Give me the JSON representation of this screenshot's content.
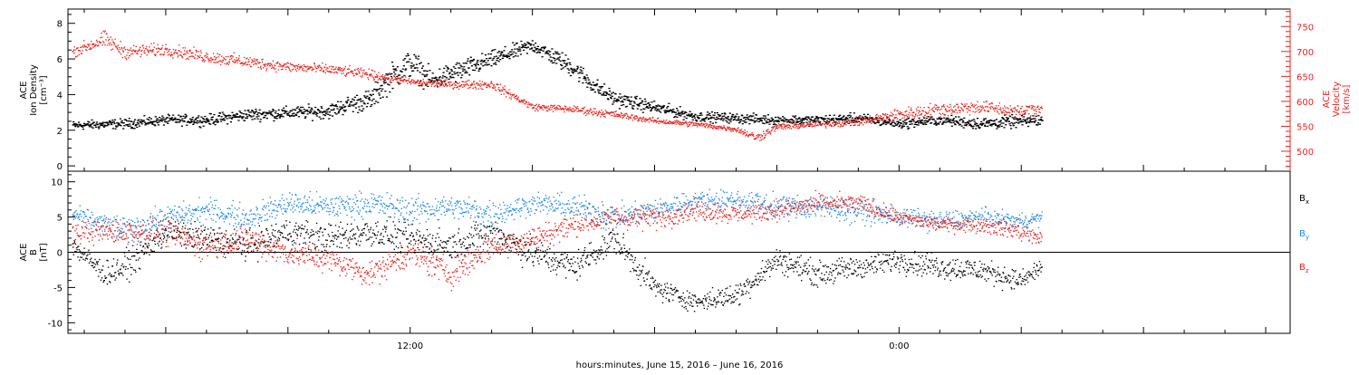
{
  "xlabel": "hours:minutes, June 15, 2016 – June 16, 2016",
  "x_tick_labels": [
    {
      "t": 12,
      "label": "12:00"
    },
    {
      "t": 24,
      "label": "0:00"
    }
  ],
  "colors": {
    "black": "#000000",
    "red": "#e8231c",
    "blue": "#1e88e5"
  },
  "chart_data": [
    {
      "type": "scatter",
      "panel": "ion-density-velocity",
      "left_axis": {
        "label_lines": [
          "ACE",
          "Ion Density",
          "[cm⁻³]"
        ],
        "ylim": [
          -0.3,
          8.8
        ],
        "ticks": [
          0,
          2,
          4,
          6,
          8
        ]
      },
      "right_axis": {
        "label_lines": [
          "ACE",
          "Velocity",
          "[km/s]"
        ],
        "ylim": [
          460,
          785
        ],
        "ticks": [
          500,
          550,
          600,
          650,
          700,
          750
        ],
        "color": "#e8231c"
      },
      "xlim_hours": [
        3.6,
        33.6
      ],
      "series": [
        {
          "axis": "left",
          "color": "#000000",
          "x_hours": [
            3.7,
            5.0,
            6.0,
            7.0,
            8.0,
            9.0,
            10.0,
            10.5,
            11.0,
            11.5,
            12.0,
            12.5,
            13.0,
            14.0,
            15.0,
            16.0,
            16.5,
            17.0,
            18.0,
            19.0,
            20.0,
            21.0,
            22.0,
            23.0,
            24.0,
            25.0,
            26.0,
            27.5
          ],
          "values": [
            2.3,
            2.4,
            2.6,
            2.6,
            2.9,
            3.0,
            3.1,
            3.5,
            3.7,
            5.0,
            5.8,
            4.8,
            5.2,
            6.0,
            6.8,
            5.5,
            4.5,
            3.8,
            3.3,
            2.8,
            2.7,
            2.6,
            2.6,
            2.7,
            2.4,
            2.6,
            2.4,
            2.6
          ],
          "spread": [
            0.35,
            0.4,
            0.4,
            0.45,
            0.5,
            0.5,
            0.6,
            0.7,
            0.9,
            1.1,
            1.2,
            0.9,
            0.9,
            0.7,
            0.6,
            0.8,
            0.7,
            0.6,
            0.5,
            0.4,
            0.4,
            0.4,
            0.4,
            0.4,
            0.4,
            0.4,
            0.5,
            0.5
          ]
        },
        {
          "axis": "right",
          "color": "#e8231c",
          "x_hours": [
            3.7,
            4.5,
            5.0,
            6.0,
            7.0,
            8.0,
            9.0,
            10.0,
            11.0,
            12.0,
            13.0,
            14.0,
            15.0,
            16.0,
            16.5,
            17.0,
            18.0,
            19.0,
            20.0,
            20.5,
            21.0,
            22.0,
            23.0,
            24.0,
            25.0,
            26.0,
            27.0,
            27.5
          ],
          "values": [
            700,
            725,
            700,
            705,
            690,
            680,
            670,
            665,
            655,
            640,
            635,
            635,
            590,
            585,
            580,
            575,
            562,
            555,
            545,
            528,
            550,
            555,
            560,
            575,
            585,
            590,
            580,
            590
          ],
          "spread": [
            15,
            25,
            20,
            18,
            18,
            18,
            15,
            15,
            14,
            10,
            12,
            14,
            10,
            10,
            12,
            10,
            8,
            8,
            8,
            14,
            10,
            10,
            12,
            18,
            20,
            20,
            18,
            20
          ]
        }
      ]
    },
    {
      "type": "scatter",
      "panel": "magnetic-field",
      "left_axis": {
        "label_lines": [
          "ACE",
          "B",
          "[nT]"
        ],
        "ylim": [
          -11.5,
          11.5
        ],
        "ticks": [
          -10,
          -5,
          0,
          5,
          10
        ]
      },
      "zero_line": true,
      "xlim_hours": [
        3.6,
        33.6
      ],
      "series": [
        {
          "name": "Bx",
          "color": "#000000",
          "x_hours": [
            3.7,
            4.5,
            5.0,
            6.0,
            7.0,
            8.0,
            9.0,
            10.0,
            11.0,
            12.0,
            13.0,
            14.0,
            15.0,
            16.0,
            17.0,
            18.0,
            19.0,
            20.0,
            21.0,
            22.0,
            23.0,
            24.0,
            25.0,
            26.0,
            27.0,
            27.5
          ],
          "values": [
            1.0,
            -3.0,
            -2.0,
            3.0,
            2.0,
            1.0,
            3.0,
            2.0,
            3.0,
            2.0,
            1.0,
            3.0,
            0.0,
            -2.0,
            2.0,
            -5.0,
            -7.0,
            -6.0,
            -1.0,
            -3.0,
            -2.0,
            -1.0,
            -2.0,
            -2.5,
            -4.0,
            -2.0
          ],
          "spread": [
            2.0,
            2.5,
            3.0,
            2.5,
            3.0,
            3.0,
            3.0,
            3.0,
            3.0,
            3.0,
            3.0,
            3.0,
            3.5,
            3.0,
            3.0,
            2.5,
            1.8,
            2.5,
            2.5,
            2.5,
            2.5,
            2.5,
            2.5,
            2.5,
            2.0,
            2.0
          ]
        },
        {
          "name": "By",
          "color": "#1e88e5",
          "x_hours": [
            3.7,
            5.0,
            6.0,
            7.0,
            8.0,
            9.0,
            10.0,
            11.0,
            12.0,
            13.0,
            14.0,
            15.0,
            16.0,
            17.0,
            18.0,
            19.0,
            20.0,
            21.0,
            22.0,
            23.0,
            24.0,
            25.0,
            26.0,
            27.0,
            27.5
          ],
          "values": [
            5.5,
            3.0,
            5.0,
            6.0,
            5.0,
            7.0,
            6.5,
            7.0,
            6.0,
            6.5,
            5.5,
            7.0,
            6.5,
            5.0,
            6.0,
            7.5,
            7.5,
            6.5,
            6.5,
            6.0,
            5.0,
            4.5,
            5.0,
            4.5,
            5.0
          ],
          "spread": [
            1.5,
            3.0,
            2.5,
            2.5,
            2.5,
            2.5,
            2.5,
            2.5,
            3.0,
            2.5,
            3.0,
            2.0,
            2.5,
            3.0,
            2.5,
            2.0,
            2.0,
            2.5,
            2.5,
            2.5,
            2.0,
            2.0,
            2.0,
            1.5,
            1.5
          ]
        },
        {
          "name": "Bz",
          "color": "#e8231c",
          "x_hours": [
            3.7,
            5.0,
            6.0,
            7.0,
            8.0,
            9.0,
            10.0,
            11.0,
            12.0,
            13.0,
            14.0,
            15.0,
            16.0,
            17.0,
            18.0,
            19.0,
            20.0,
            21.0,
            22.0,
            23.0,
            24.0,
            25.0,
            26.0,
            27.0,
            27.5
          ],
          "values": [
            3.0,
            3.0,
            3.0,
            1.0,
            2.0,
            0.0,
            -1.0,
            -3.0,
            0.0,
            -3.0,
            1.0,
            2.0,
            4.0,
            5.0,
            5.0,
            6.0,
            5.5,
            6.0,
            7.0,
            7.0,
            5.0,
            4.0,
            4.0,
            3.0,
            2.0
          ],
          "spread": [
            2.5,
            2.5,
            3.0,
            3.0,
            3.0,
            3.0,
            2.5,
            2.5,
            3.0,
            3.0,
            3.0,
            2.5,
            2.5,
            2.5,
            2.5,
            2.0,
            2.0,
            2.0,
            2.0,
            2.0,
            1.5,
            1.5,
            1.5,
            2.0,
            2.0
          ]
        }
      ]
    }
  ],
  "legend": [
    {
      "letter": "B",
      "sub": "x",
      "color": "#000000"
    },
    {
      "letter": "B",
      "sub": "y",
      "color": "#1e88e5"
    },
    {
      "letter": "B",
      "sub": "z",
      "color": "#e8231c"
    }
  ]
}
